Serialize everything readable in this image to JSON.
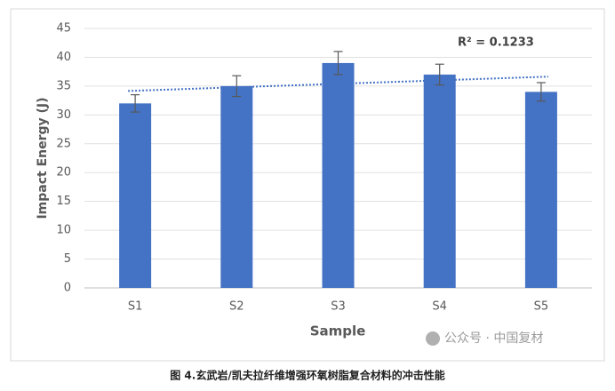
{
  "chart_data": {
    "type": "bar",
    "y_label": "Impact Energy (J)",
    "x_label": "Sample",
    "categories": [
      "S1",
      "S2",
      "S3",
      "S4",
      "S5"
    ],
    "values": [
      32,
      35,
      39,
      37,
      34
    ],
    "errors": [
      1.5,
      1.8,
      2,
      1.8,
      1.6
    ],
    "color": "#4472c4",
    "error_color": "#595959",
    "ylim": [
      0,
      45
    ],
    "yticks": [
      0,
      5,
      10,
      15,
      20,
      25,
      30,
      35,
      40,
      45
    ],
    "grid": true,
    "trendline": {
      "type": "linear",
      "label": "R² = 0.1233",
      "color": "#4472c4"
    }
  },
  "caption": "图 4.玄武岩/凯夫拉纤维增强环氧树脂复合材料的冲击性能",
  "watermark": "公众号 · 中国复材"
}
